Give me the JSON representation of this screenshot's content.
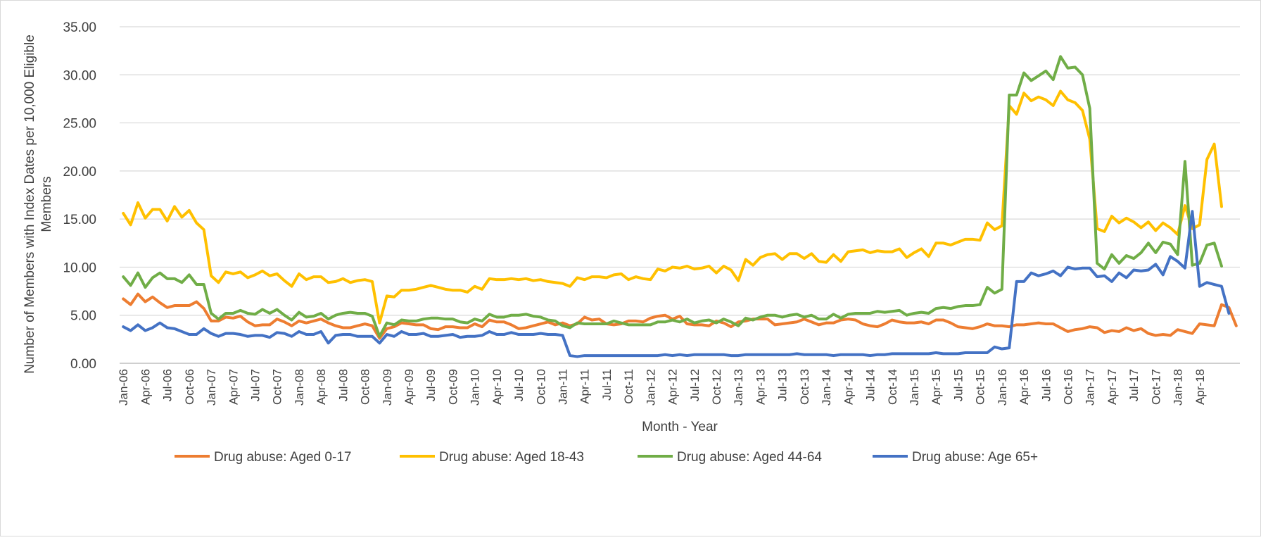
{
  "chart_data": {
    "type": "line",
    "title": "",
    "xlabel": "Month - Year",
    "ylabel": "Number of Members with Index Dates per 10,000 Eligible Members",
    "ylim": [
      0,
      35
    ],
    "y_ticks": [
      "0.00",
      "5.00",
      "10.00",
      "15.00",
      "20.00",
      "25.00",
      "30.00",
      "35.00"
    ],
    "grid": "horizontal",
    "legend_position": "bottom",
    "x_tick_labels": [
      "Jan-06",
      "Apr-06",
      "Jul-06",
      "Oct-06",
      "Jan-07",
      "Apr-07",
      "Jul-07",
      "Oct-07",
      "Jan-08",
      "Apr-08",
      "Jul-08",
      "Oct-08",
      "Jan-09",
      "Apr-09",
      "Jul-09",
      "Oct-09",
      "Jan-10",
      "Apr-10",
      "Jul-10",
      "Oct-10",
      "Jan-11",
      "Apr-11",
      "Jul-11",
      "Oct-11",
      "Jan-12",
      "Apr-12",
      "Jul-12",
      "Oct-12",
      "Jan-13",
      "Apr-13",
      "Jul-13",
      "Oct-13",
      "Jan-14",
      "Apr-14",
      "Jul-14",
      "Oct-14",
      "Jan-15",
      "Apr-15",
      "Jul-15",
      "Oct-15",
      "Jan-16",
      "Apr-16",
      "Jul-16",
      "Oct-16",
      "Jan-17",
      "Apr-17",
      "Jul-17",
      "Oct-17",
      "Jan-18",
      "Apr-18"
    ],
    "series": [
      {
        "name": "Drug abuse: Aged 0-17",
        "color": "#ED7D31",
        "values": [
          6.7,
          6.1,
          7.2,
          6.4,
          6.9,
          6.3,
          5.8,
          6.0,
          6.0,
          6.0,
          6.4,
          5.7,
          4.4,
          4.4,
          4.8,
          4.7,
          4.9,
          4.3,
          3.9,
          4.0,
          4.0,
          4.6,
          4.3,
          3.9,
          4.4,
          4.2,
          4.4,
          4.6,
          4.2,
          3.9,
          3.7,
          3.7,
          3.9,
          4.1,
          3.9,
          2.6,
          3.6,
          3.8,
          4.2,
          4.1,
          4.0,
          4.0,
          3.6,
          3.5,
          3.8,
          3.8,
          3.7,
          3.7,
          4.1,
          3.8,
          4.5,
          4.3,
          4.3,
          4.0,
          3.6,
          3.7,
          3.9,
          4.1,
          4.3,
          4.0,
          4.2,
          3.9,
          4.1,
          4.8,
          4.5,
          4.6,
          4.1,
          4.0,
          4.1,
          4.4,
          4.4,
          4.3,
          4.7,
          4.9,
          5.0,
          4.6,
          4.9,
          4.1,
          4.0,
          4.0,
          3.9,
          4.4,
          4.2,
          3.8,
          4.3,
          4.4,
          4.6,
          4.6,
          4.6,
          4.0,
          4.1,
          4.2,
          4.3,
          4.6,
          4.3,
          4.0,
          4.2,
          4.2,
          4.5,
          4.6,
          4.5,
          4.1,
          3.9,
          3.8,
          4.1,
          4.5,
          4.3,
          4.2,
          4.2,
          4.3,
          4.1,
          4.5,
          4.5,
          4.2,
          3.8,
          3.7,
          3.6,
          3.8,
          4.1,
          3.9,
          3.9,
          3.8,
          4.0,
          4.0,
          4.1,
          4.2,
          4.1,
          4.1,
          3.7,
          3.3,
          3.5,
          3.6,
          3.8,
          3.7,
          3.2,
          3.4,
          3.3,
          3.7,
          3.4,
          3.6,
          3.1,
          2.9,
          3.0,
          2.9,
          3.5,
          3.3,
          3.1,
          4.1,
          4.0,
          3.9,
          6.1,
          5.8,
          3.9
        ]
      },
      {
        "name": "Drug abuse: Aged 18-43",
        "color": "#FFC000",
        "values": [
          15.6,
          14.4,
          16.7,
          15.1,
          16.0,
          16.0,
          14.8,
          16.3,
          15.2,
          15.9,
          14.6,
          13.9,
          9.1,
          8.4,
          9.5,
          9.3,
          9.5,
          8.9,
          9.2,
          9.6,
          9.1,
          9.3,
          8.6,
          8.0,
          9.3,
          8.7,
          9.0,
          9.0,
          8.4,
          8.5,
          8.8,
          8.4,
          8.6,
          8.7,
          8.5,
          4.2,
          7.0,
          6.9,
          7.6,
          7.6,
          7.7,
          7.9,
          8.1,
          7.9,
          7.7,
          7.6,
          7.6,
          7.4,
          8.0,
          7.7,
          8.8,
          8.7,
          8.7,
          8.8,
          8.7,
          8.8,
          8.6,
          8.7,
          8.5,
          8.4,
          8.3,
          8.0,
          8.9,
          8.7,
          9.0,
          9.0,
          8.9,
          9.2,
          9.3,
          8.7,
          9.0,
          8.8,
          8.7,
          9.8,
          9.6,
          10.0,
          9.9,
          10.1,
          9.8,
          9.9,
          10.1,
          9.4,
          10.1,
          9.7,
          8.6,
          10.8,
          10.2,
          11.0,
          11.3,
          11.4,
          10.8,
          11.4,
          11.4,
          10.9,
          11.4,
          10.6,
          10.5,
          11.3,
          10.6,
          11.6,
          11.7,
          11.8,
          11.5,
          11.7,
          11.6,
          11.6,
          11.9,
          11.0,
          11.5,
          11.9,
          11.1,
          12.5,
          12.5,
          12.3,
          12.6,
          12.9,
          12.9,
          12.8,
          14.6,
          13.9,
          14.3,
          26.8,
          25.9,
          28.1,
          27.3,
          27.7,
          27.4,
          26.8,
          28.3,
          27.4,
          27.1,
          26.3,
          23.3,
          14.0,
          13.7,
          15.3,
          14.6,
          15.1,
          14.7,
          14.1,
          14.7,
          13.8,
          14.6,
          14.1,
          13.4,
          16.4,
          14.0,
          14.4,
          21.2,
          22.8,
          16.3
        ]
      },
      {
        "name": "Drug abuse: Aged 44-64",
        "color": "#70AD47",
        "values": [
          9.0,
          8.1,
          9.4,
          7.9,
          8.9,
          9.4,
          8.8,
          8.8,
          8.4,
          9.2,
          8.2,
          8.2,
          5.2,
          4.6,
          5.2,
          5.2,
          5.5,
          5.2,
          5.1,
          5.6,
          5.2,
          5.6,
          5.0,
          4.5,
          5.3,
          4.8,
          4.9,
          5.2,
          4.6,
          5.0,
          5.2,
          5.3,
          5.2,
          5.2,
          4.9,
          2.8,
          4.2,
          4.0,
          4.5,
          4.4,
          4.4,
          4.6,
          4.7,
          4.7,
          4.6,
          4.6,
          4.3,
          4.2,
          4.6,
          4.4,
          5.1,
          4.8,
          4.8,
          5.0,
          5.0,
          5.1,
          4.9,
          4.8,
          4.5,
          4.4,
          3.9,
          3.7,
          4.2,
          4.1,
          4.1,
          4.1,
          4.1,
          4.4,
          4.2,
          4.0,
          4.0,
          4.0,
          4.0,
          4.3,
          4.3,
          4.5,
          4.3,
          4.6,
          4.2,
          4.4,
          4.5,
          4.2,
          4.6,
          4.3,
          3.9,
          4.7,
          4.5,
          4.8,
          5.0,
          5.0,
          4.8,
          5.0,
          5.1,
          4.8,
          5.0,
          4.6,
          4.6,
          5.1,
          4.7,
          5.1,
          5.2,
          5.2,
          5.2,
          5.4,
          5.3,
          5.4,
          5.5,
          5.0,
          5.2,
          5.3,
          5.2,
          5.7,
          5.8,
          5.7,
          5.9,
          6.0,
          6.0,
          6.1,
          7.9,
          7.3,
          7.7,
          27.9,
          27.9,
          30.2,
          29.4,
          29.9,
          30.4,
          29.5,
          31.9,
          30.7,
          30.8,
          30.0,
          26.5,
          10.4,
          9.8,
          11.3,
          10.4,
          11.2,
          10.9,
          11.5,
          12.5,
          11.5,
          12.6,
          12.4,
          11.3,
          21.0,
          10.2,
          10.4,
          12.3,
          12.5,
          10.1
        ]
      },
      {
        "name": "Drug abuse: Age 65+",
        "color": "#4472C4",
        "values": [
          3.8,
          3.4,
          4.0,
          3.4,
          3.7,
          4.2,
          3.7,
          3.6,
          3.3,
          3.0,
          3.0,
          3.6,
          3.1,
          2.8,
          3.1,
          3.1,
          3.0,
          2.8,
          2.9,
          2.9,
          2.7,
          3.2,
          3.1,
          2.8,
          3.3,
          3.0,
          3.0,
          3.3,
          2.1,
          2.9,
          3.0,
          3.0,
          2.8,
          2.8,
          2.8,
          2.1,
          3.0,
          2.8,
          3.3,
          3.0,
          3.0,
          3.1,
          2.8,
          2.8,
          2.9,
          3.0,
          2.7,
          2.8,
          2.8,
          2.9,
          3.3,
          3.0,
          3.0,
          3.2,
          3.0,
          3.0,
          3.0,
          3.1,
          3.0,
          3.0,
          2.9,
          0.8,
          0.7,
          0.8,
          0.8,
          0.8,
          0.8,
          0.8,
          0.8,
          0.8,
          0.8,
          0.8,
          0.8,
          0.8,
          0.9,
          0.8,
          0.9,
          0.8,
          0.9,
          0.9,
          0.9,
          0.9,
          0.9,
          0.8,
          0.8,
          0.9,
          0.9,
          0.9,
          0.9,
          0.9,
          0.9,
          0.9,
          1.0,
          0.9,
          0.9,
          0.9,
          0.9,
          0.8,
          0.9,
          0.9,
          0.9,
          0.9,
          0.8,
          0.9,
          0.9,
          1.0,
          1.0,
          1.0,
          1.0,
          1.0,
          1.0,
          1.1,
          1.0,
          1.0,
          1.0,
          1.1,
          1.1,
          1.1,
          1.1,
          1.7,
          1.5,
          1.6,
          8.5,
          8.5,
          9.4,
          9.1,
          9.3,
          9.6,
          9.1,
          10.0,
          9.8,
          9.9,
          9.9,
          9.0,
          9.1,
          8.5,
          9.4,
          8.9,
          9.7,
          9.6,
          9.7,
          10.3,
          9.2,
          11.1,
          10.6,
          9.9,
          15.8,
          8.0,
          8.4,
          8.2,
          8.0,
          5.2
        ]
      }
    ]
  }
}
